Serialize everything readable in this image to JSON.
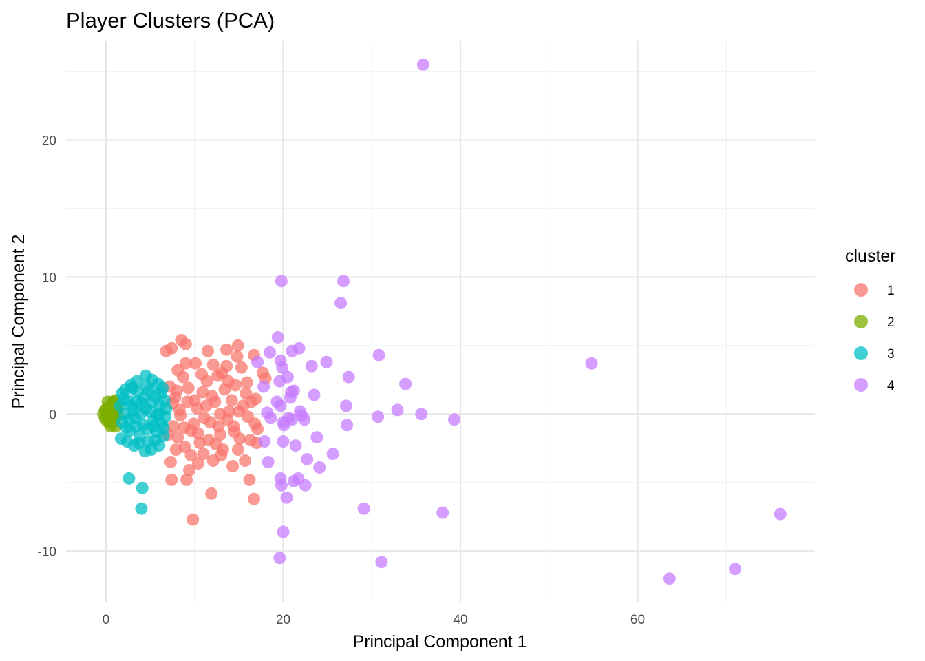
{
  "chart_data": {
    "type": "scatter",
    "title": "Player Clusters (PCA)",
    "xlabel": "Principal Component 1",
    "ylabel": "Principal Component 2",
    "xlim": [
      -4.5,
      80
    ],
    "ylim": [
      -13.7,
      27.2
    ],
    "x_ticks": [
      0,
      20,
      40,
      60
    ],
    "y_ticks": [
      -10,
      0,
      10,
      20
    ],
    "grid": true,
    "legend": {
      "title": "cluster",
      "position": "right",
      "entries": [
        "1",
        "2",
        "3",
        "4"
      ]
    },
    "series": [
      {
        "name": "1",
        "color": "#F8766D",
        "points": [
          [
            9.8,
            -7.7
          ],
          [
            11.9,
            -5.8
          ],
          [
            16.7,
            -6.2
          ],
          [
            7.4,
            -4.8
          ],
          [
            9.1,
            -4.8
          ],
          [
            16.2,
            -4.8
          ],
          [
            9.4,
            -4.1
          ],
          [
            14.3,
            -3.8
          ],
          [
            12.1,
            -3.4
          ],
          [
            15.7,
            -3.4
          ],
          [
            7.3,
            -3.5
          ],
          [
            10.4,
            -3.6
          ],
          [
            13.0,
            -3.0
          ],
          [
            16.3,
            -1.9
          ],
          [
            17.0,
            -2.1
          ],
          [
            6.8,
            4.6
          ],
          [
            7.4,
            4.8
          ],
          [
            8.5,
            5.4
          ],
          [
            9.0,
            5.1
          ],
          [
            11.5,
            4.6
          ],
          [
            13.6,
            4.7
          ],
          [
            14.9,
            5.0
          ],
          [
            8.1,
            3.2
          ],
          [
            9.0,
            3.7
          ],
          [
            10.1,
            3.7
          ],
          [
            12.1,
            3.6
          ],
          [
            13.6,
            3.5
          ],
          [
            15.3,
            3.4
          ],
          [
            16.7,
            4.3
          ],
          [
            17.7,
            3.0
          ],
          [
            18.0,
            2.6
          ],
          [
            14.8,
            4.2
          ],
          [
            16.9,
            1.1
          ],
          [
            17.1,
            -1.1
          ],
          [
            15.8,
            1.5
          ],
          [
            16.8,
            -0.7
          ],
          [
            7.2,
            2.0
          ],
          [
            7.8,
            1.2
          ],
          [
            8.3,
            0.3
          ],
          [
            7.6,
            -0.9
          ],
          [
            8.1,
            -1.7
          ],
          [
            8.9,
            -2.4
          ],
          [
            9.6,
            -1.2
          ],
          [
            10.3,
            0.4
          ],
          [
            10.9,
            1.6
          ],
          [
            11.4,
            2.4
          ],
          [
            11.8,
            -0.6
          ],
          [
            12.3,
            0.9
          ],
          [
            12.9,
            -1.5
          ],
          [
            13.4,
            1.8
          ],
          [
            13.9,
            0.2
          ],
          [
            14.4,
            -0.9
          ],
          [
            14.6,
            2.1
          ],
          [
            15.1,
            -1.8
          ],
          [
            15.5,
            0.6
          ],
          [
            16.0,
            -0.2
          ],
          [
            9.3,
            1.9
          ],
          [
            10.6,
            -2.1
          ],
          [
            11.1,
            -0.3
          ],
          [
            12.6,
            2.8
          ],
          [
            13.2,
            -2.6
          ],
          [
            8.7,
            2.7
          ],
          [
            9.9,
            -0.7
          ],
          [
            10.8,
            2.9
          ],
          [
            7.9,
            -2.6
          ],
          [
            12.0,
            1.3
          ],
          [
            13.7,
            -0.4
          ],
          [
            14.2,
            1.0
          ],
          [
            15.9,
            2.3
          ],
          [
            11.6,
            -1.9
          ],
          [
            8.4,
            -0.1
          ],
          [
            10.0,
            1.0
          ],
          [
            11.3,
            0.6
          ],
          [
            12.7,
            -0.9
          ],
          [
            9.6,
            -3.0
          ],
          [
            7.0,
            -1.5
          ],
          [
            7.5,
            0.8
          ],
          [
            14.9,
            -2.6
          ],
          [
            16.4,
            0.9
          ],
          [
            13.1,
            3.0
          ],
          [
            12.4,
            -2.2
          ],
          [
            10.4,
            -1.4
          ],
          [
            8.8,
            -1.0
          ],
          [
            9.2,
            0.9
          ],
          [
            15.0,
            0.2
          ],
          [
            13.8,
            2.4
          ],
          [
            11.0,
            -2.9
          ],
          [
            12.9,
            0.0
          ],
          [
            14.5,
            -1.3
          ],
          [
            8.0,
            1.7
          ]
        ]
      },
      {
        "name": "2",
        "color": "#7CAE00",
        "points": [
          [
            -0.3,
            0.0
          ],
          [
            -0.1,
            0.3
          ],
          [
            -0.1,
            -0.3
          ],
          [
            0.1,
            0.4
          ],
          [
            0.1,
            -0.5
          ],
          [
            0.3,
            0.1
          ],
          [
            0.3,
            -0.1
          ],
          [
            0.4,
            0.6
          ],
          [
            0.4,
            -0.6
          ],
          [
            0.6,
            0.2
          ],
          [
            0.6,
            -0.3
          ],
          [
            0.7,
            0.8
          ],
          [
            0.7,
            -0.7
          ],
          [
            0.9,
            0.0
          ],
          [
            0.9,
            0.5
          ],
          [
            1.0,
            -0.4
          ],
          [
            1.1,
            1.0
          ],
          [
            1.1,
            -0.9
          ],
          [
            1.2,
            0.3
          ],
          [
            1.3,
            -0.1
          ],
          [
            0.2,
            0.9
          ],
          [
            0.5,
            -0.9
          ],
          [
            0.0,
            0.0
          ],
          [
            0.8,
            0.9
          ],
          [
            1.3,
            0.6
          ],
          [
            0.2,
            -0.2
          ],
          [
            0.5,
            0.3
          ],
          [
            1.0,
            0.2
          ]
        ]
      },
      {
        "name": "3",
        "color": "#00BFC4",
        "points": [
          [
            2.6,
            -4.7
          ],
          [
            4.1,
            -5.4
          ],
          [
            4.0,
            -6.9
          ],
          [
            1.8,
            1.5
          ],
          [
            2.2,
            1.8
          ],
          [
            2.8,
            2.1
          ],
          [
            3.5,
            2.4
          ],
          [
            4.5,
            2.8
          ],
          [
            5.2,
            2.5
          ],
          [
            5.9,
            2.2
          ],
          [
            6.4,
            1.9
          ],
          [
            1.7,
            -1.8
          ],
          [
            2.4,
            -2.0
          ],
          [
            3.2,
            -2.3
          ],
          [
            4.4,
            -2.7
          ],
          [
            5.1,
            -2.6
          ],
          [
            6.0,
            -2.3
          ],
          [
            6.5,
            -1.6
          ],
          [
            1.6,
            0.6
          ],
          [
            1.8,
            -0.6
          ],
          [
            2.5,
            1.0
          ],
          [
            2.7,
            -1.2
          ],
          [
            3.1,
            0.3
          ],
          [
            3.3,
            -0.3
          ],
          [
            3.6,
            1.6
          ],
          [
            3.8,
            -1.6
          ],
          [
            4.0,
            0.8
          ],
          [
            4.2,
            -0.8
          ],
          [
            4.6,
            2.0
          ],
          [
            4.8,
            -2.0
          ],
          [
            5.0,
            0.2
          ],
          [
            5.3,
            -0.5
          ],
          [
            5.5,
            1.3
          ],
          [
            5.7,
            -1.3
          ],
          [
            6.1,
            0.6
          ],
          [
            6.3,
            -0.7
          ],
          [
            6.6,
            1.0
          ],
          [
            6.7,
            -0.2
          ],
          [
            2.1,
            0.0
          ],
          [
            2.9,
            0.6
          ],
          [
            3.4,
            -0.9
          ],
          [
            3.9,
            0.0
          ],
          [
            4.3,
            1.2
          ],
          [
            4.7,
            -1.1
          ],
          [
            5.2,
            0.9
          ],
          [
            5.8,
            -0.1
          ],
          [
            6.2,
            1.5
          ],
          [
            6.5,
            -1.0
          ],
          [
            2.0,
            1.1
          ],
          [
            2.3,
            -1.0
          ],
          [
            3.0,
            1.9
          ],
          [
            3.7,
            -2.1
          ],
          [
            4.9,
            1.7
          ],
          [
            5.6,
            -1.9
          ],
          [
            6.8,
            0.4
          ],
          [
            4.5,
            0.4
          ],
          [
            3.5,
            0.9
          ],
          [
            5.4,
            -0.9
          ],
          [
            2.6,
            -0.4
          ],
          [
            6.0,
            0.0
          ]
        ]
      },
      {
        "name": "4",
        "color": "#C77CFF",
        "points": [
          [
            35.8,
            25.5
          ],
          [
            19.8,
            9.7
          ],
          [
            26.8,
            9.7
          ],
          [
            26.5,
            8.1
          ],
          [
            19.4,
            5.6
          ],
          [
            21.8,
            4.8
          ],
          [
            21.0,
            4.6
          ],
          [
            17.1,
            3.8
          ],
          [
            18.5,
            4.5
          ],
          [
            19.7,
            3.9
          ],
          [
            24.9,
            3.8
          ],
          [
            30.8,
            4.3
          ],
          [
            54.8,
            3.7
          ],
          [
            19.9,
            3.4
          ],
          [
            23.2,
            3.5
          ],
          [
            20.5,
            2.7
          ],
          [
            27.4,
            2.7
          ],
          [
            33.8,
            2.2
          ],
          [
            17.8,
            2.0
          ],
          [
            19.6,
            2.4
          ],
          [
            20.9,
            1.6
          ],
          [
            23.5,
            1.4
          ],
          [
            19.3,
            0.9
          ],
          [
            21.2,
            1.7
          ],
          [
            27.1,
            0.6
          ],
          [
            18.2,
            0.1
          ],
          [
            19.7,
            0.6
          ],
          [
            20.8,
            1.2
          ],
          [
            21.9,
            0.2
          ],
          [
            32.9,
            0.3
          ],
          [
            35.6,
            0.0
          ],
          [
            30.7,
            -0.2
          ],
          [
            39.3,
            -0.4
          ],
          [
            20.0,
            -0.6
          ],
          [
            22.1,
            -0.1
          ],
          [
            22.4,
            -0.4
          ],
          [
            21.0,
            -0.4
          ],
          [
            27.2,
            -0.8
          ],
          [
            20.1,
            -0.8
          ],
          [
            23.8,
            -1.7
          ],
          [
            17.9,
            -2.0
          ],
          [
            20.0,
            -2.0
          ],
          [
            21.4,
            -2.3
          ],
          [
            25.6,
            -2.9
          ],
          [
            18.3,
            -3.5
          ],
          [
            22.7,
            -3.3
          ],
          [
            24.1,
            -3.9
          ],
          [
            19.7,
            -4.7
          ],
          [
            21.2,
            -4.9
          ],
          [
            21.7,
            -4.7
          ],
          [
            22.5,
            -5.2
          ],
          [
            19.8,
            -5.2
          ],
          [
            20.4,
            -6.1
          ],
          [
            29.1,
            -6.9
          ],
          [
            38.0,
            -7.2
          ],
          [
            76.1,
            -7.3
          ],
          [
            20.0,
            -8.6
          ],
          [
            19.6,
            -10.5
          ],
          [
            31.1,
            -10.8
          ],
          [
            71.0,
            -11.3
          ],
          [
            63.6,
            -12.0
          ],
          [
            18.6,
            -0.3
          ],
          [
            20.6,
            -0.3
          ]
        ]
      }
    ]
  }
}
